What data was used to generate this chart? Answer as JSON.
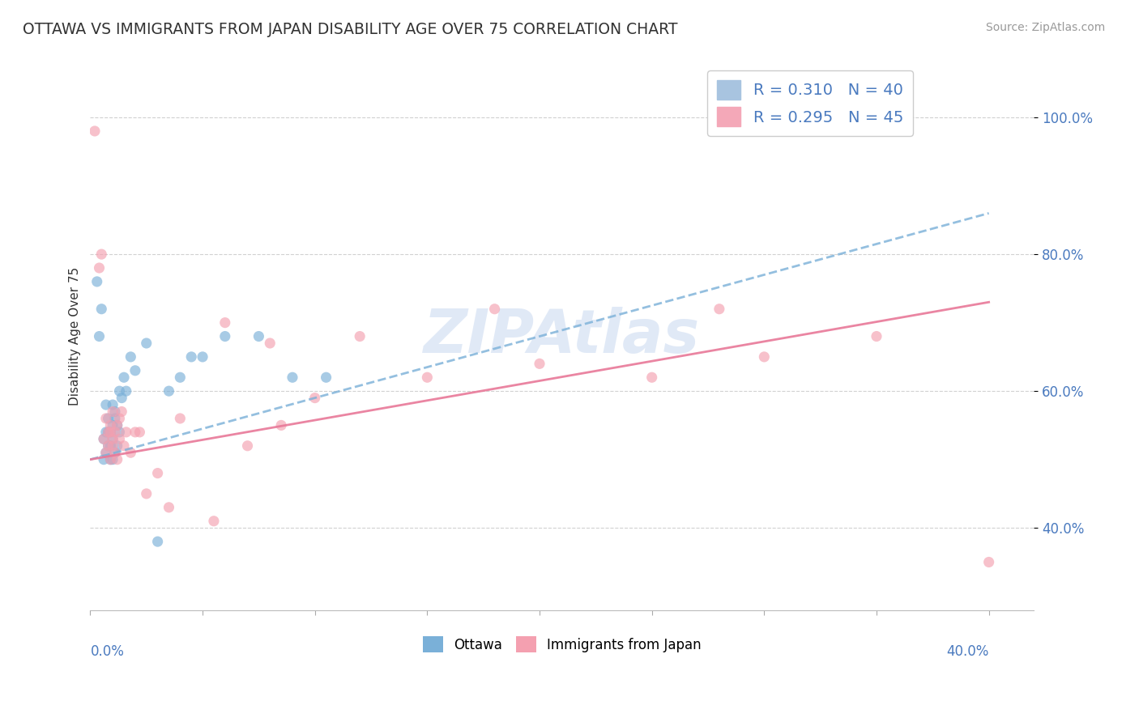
{
  "title": "OTTAWA VS IMMIGRANTS FROM JAPAN DISABILITY AGE OVER 75 CORRELATION CHART",
  "source": "Source: ZipAtlas.com",
  "ylabel": "Disability Age Over 75",
  "ytick_values": [
    0.4,
    0.6,
    0.8,
    1.0
  ],
  "xlim": [
    0.0,
    0.42
  ],
  "ylim": [
    0.28,
    1.08
  ],
  "watermark": "ZIPAtlas",
  "watermark_color": "#c8d8f0",
  "series1_name": "Ottawa",
  "series2_name": "Immigrants from Japan",
  "series1_color": "#7ab0d8",
  "series2_color": "#f4a0b0",
  "trendline1_color": "#7ab0d8",
  "trendline2_color": "#e87898",
  "gridline_color": "#cccccc",
  "background_color": "#ffffff",
  "ottawa_x": [
    0.003,
    0.004,
    0.005,
    0.006,
    0.006,
    0.007,
    0.007,
    0.007,
    0.008,
    0.008,
    0.008,
    0.009,
    0.009,
    0.009,
    0.01,
    0.01,
    0.01,
    0.01,
    0.011,
    0.011,
    0.011,
    0.012,
    0.012,
    0.013,
    0.013,
    0.014,
    0.015,
    0.016,
    0.018,
    0.02,
    0.025,
    0.03,
    0.035,
    0.04,
    0.045,
    0.05,
    0.06,
    0.075,
    0.09,
    0.105
  ],
  "ottawa_y": [
    0.76,
    0.68,
    0.72,
    0.5,
    0.53,
    0.54,
    0.58,
    0.51,
    0.56,
    0.52,
    0.54,
    0.5,
    0.54,
    0.52,
    0.55,
    0.58,
    0.5,
    0.53,
    0.56,
    0.51,
    0.57,
    0.55,
    0.52,
    0.54,
    0.6,
    0.59,
    0.62,
    0.6,
    0.65,
    0.63,
    0.67,
    0.38,
    0.6,
    0.62,
    0.65,
    0.65,
    0.68,
    0.68,
    0.62,
    0.62
  ],
  "japan_x": [
    0.002,
    0.004,
    0.005,
    0.006,
    0.007,
    0.007,
    0.008,
    0.008,
    0.009,
    0.009,
    0.009,
    0.01,
    0.01,
    0.01,
    0.011,
    0.011,
    0.012,
    0.012,
    0.013,
    0.013,
    0.014,
    0.015,
    0.016,
    0.018,
    0.02,
    0.022,
    0.025,
    0.03,
    0.035,
    0.04,
    0.055,
    0.07,
    0.085,
    0.1,
    0.15,
    0.2,
    0.25,
    0.3,
    0.35,
    0.28,
    0.18,
    0.12,
    0.08,
    0.06,
    0.4
  ],
  "japan_y": [
    0.98,
    0.78,
    0.8,
    0.53,
    0.51,
    0.56,
    0.54,
    0.52,
    0.55,
    0.54,
    0.5,
    0.52,
    0.53,
    0.57,
    0.51,
    0.54,
    0.5,
    0.55,
    0.56,
    0.53,
    0.57,
    0.52,
    0.54,
    0.51,
    0.54,
    0.54,
    0.45,
    0.48,
    0.43,
    0.56,
    0.41,
    0.52,
    0.55,
    0.59,
    0.62,
    0.64,
    0.62,
    0.65,
    0.68,
    0.72,
    0.72,
    0.68,
    0.67,
    0.7,
    0.35
  ],
  "trendline1_x0": 0.0,
  "trendline1_y0": 0.5,
  "trendline1_x1": 0.4,
  "trendline1_y1": 0.86,
  "trendline2_x0": 0.0,
  "trendline2_y0": 0.5,
  "trendline2_x1": 0.4,
  "trendline2_y1": 0.73
}
